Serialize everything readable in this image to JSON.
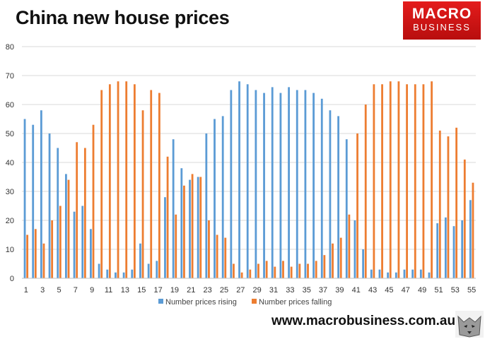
{
  "header": {
    "title": "China new house prices",
    "logo_line1": "MACRO",
    "logo_line2": "BUSINESS"
  },
  "footer": {
    "url": "www.macrobusiness.com.au"
  },
  "colors": {
    "rising": "#5b9bd5",
    "falling": "#ed7d31",
    "grid": "#d9d9d9",
    "logo": "#d91717"
  },
  "chart_data": {
    "type": "bar",
    "title": "China new house prices",
    "xlabel": "",
    "ylabel": "",
    "ylim": [
      0,
      80
    ],
    "yticks": [
      0,
      10,
      20,
      30,
      40,
      50,
      60,
      70,
      80
    ],
    "x_tick_labels": [
      "1",
      "3",
      "5",
      "7",
      "9",
      "11",
      "13",
      "15",
      "17",
      "19",
      "21",
      "23",
      "25",
      "27",
      "29",
      "31",
      "33",
      "35",
      "37",
      "39",
      "41",
      "43",
      "45",
      "47",
      "49",
      "51",
      "53",
      "55"
    ],
    "grid": "horizontal",
    "legend_position": "bottom",
    "categories": [
      "1",
      "2",
      "3",
      "4",
      "5",
      "6",
      "7",
      "8",
      "9",
      "10",
      "11",
      "12",
      "13",
      "14",
      "15",
      "16",
      "17",
      "18",
      "19",
      "20",
      "21",
      "22",
      "23",
      "24",
      "25",
      "26",
      "27",
      "28",
      "29",
      "30",
      "31",
      "32",
      "33",
      "34",
      "35",
      "36",
      "37",
      "38",
      "39",
      "40",
      "41",
      "42",
      "43",
      "44",
      "45",
      "46",
      "47",
      "48",
      "49",
      "50",
      "51",
      "52",
      "53",
      "54",
      "55"
    ],
    "series": [
      {
        "name": "Number prices rising",
        "values": [
          55,
          53,
          58,
          50,
          45,
          36,
          23,
          25,
          17,
          5,
          3,
          2,
          2,
          3,
          12,
          5,
          6,
          28,
          48,
          38,
          34,
          35,
          50,
          55,
          56,
          65,
          68,
          67,
          65,
          64,
          66,
          64,
          66,
          65,
          65,
          64,
          62,
          58,
          56,
          48,
          20,
          10,
          3,
          3,
          2,
          2,
          3,
          3,
          3,
          2,
          19,
          21,
          18,
          20,
          27
        ]
      },
      {
        "name": "Number prices falling",
        "values": [
          15,
          17,
          12,
          20,
          25,
          34,
          47,
          45,
          53,
          65,
          67,
          68,
          68,
          67,
          58,
          65,
          64,
          42,
          22,
          32,
          36,
          35,
          20,
          15,
          14,
          5,
          2,
          3,
          5,
          6,
          4,
          6,
          4,
          5,
          5,
          6,
          8,
          12,
          14,
          22,
          50,
          60,
          67,
          67,
          68,
          68,
          67,
          67,
          67,
          68,
          51,
          49,
          52,
          41,
          33
        ]
      }
    ]
  }
}
